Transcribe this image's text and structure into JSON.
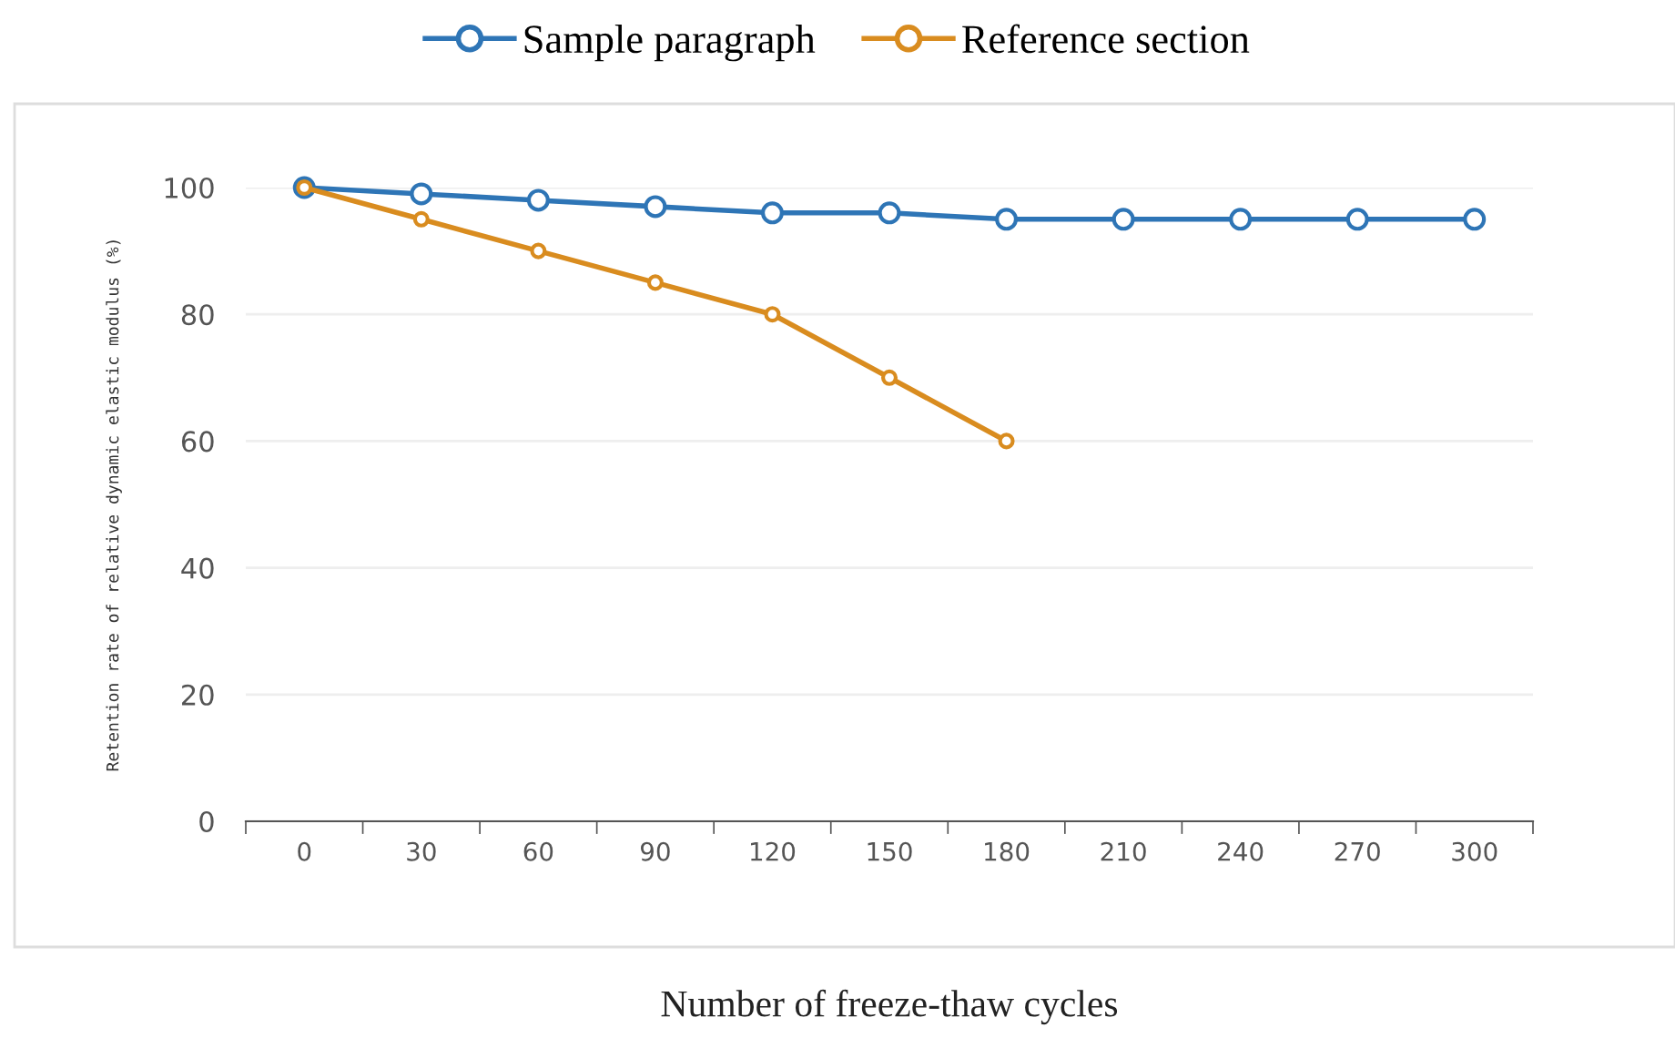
{
  "chart_data": {
    "type": "line",
    "xlabel": "Number of freeze-thaw cycles",
    "ylabel": "Retention rate of relative dynamic elastic modulus (%)",
    "categories": [
      "0",
      "30",
      "60",
      "90",
      "120",
      "150",
      "180",
      "210",
      "240",
      "270",
      "300"
    ],
    "series": [
      {
        "name": "Sample paragraph",
        "color": "#2e75b6",
        "values": [
          100,
          99,
          98,
          97,
          96,
          96,
          95,
          95,
          95,
          95,
          95
        ]
      },
      {
        "name": "Reference section",
        "color": "#d98c1f",
        "values": [
          100,
          95,
          90,
          85,
          80,
          70,
          60,
          null,
          null,
          null,
          null
        ]
      }
    ],
    "ylim": [
      0,
      100
    ],
    "yticks": [
      0,
      20,
      40,
      60,
      80,
      100
    ],
    "grid": "y",
    "legend": "top",
    "marker": "circle",
    "line_style": "solid"
  }
}
